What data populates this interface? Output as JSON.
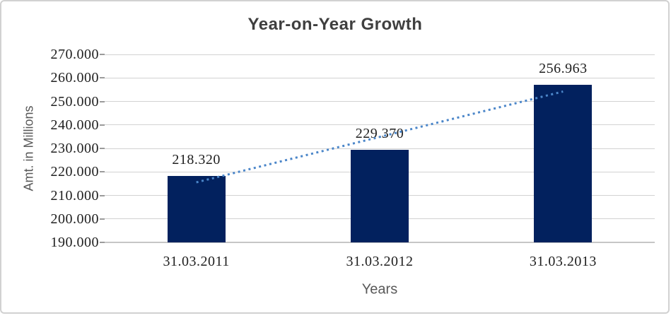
{
  "chart": {
    "title": "Year-on-Year Growth",
    "y_axis_title": "Amt. in Millions",
    "x_axis_title": "Years"
  },
  "chart_data": {
    "type": "bar",
    "title": "Year-on-Year Growth",
    "xlabel": "Years",
    "ylabel": "Amt. in Millions",
    "categories": [
      "31.03.2011",
      "31.03.2012",
      "31.03.2013"
    ],
    "values": [
      218.32,
      229.37,
      256.963
    ],
    "data_labels": [
      "218.320",
      "229.370",
      "256.963"
    ],
    "ytick_labels": [
      "190.000",
      "200.000",
      "210.000",
      "220.000",
      "230.000",
      "240.000",
      "250.000",
      "260.000",
      "270.000"
    ],
    "ylim": [
      190,
      270
    ],
    "ytick_step": 10,
    "grid": true,
    "legend": "none",
    "trendline": {
      "type": "linear",
      "style": "dotted"
    },
    "colors": {
      "bar": "#02215e",
      "trendline": "#4b86c9",
      "gridline": "#d2d2d2",
      "axis_line": "#c6c6c6",
      "tick": "#9b9b9b",
      "frame_border": "#d1d1d1",
      "title_text": "#3f3f3f",
      "axis_title_text": "#595959",
      "label_text": "#1f1f1f"
    }
  }
}
